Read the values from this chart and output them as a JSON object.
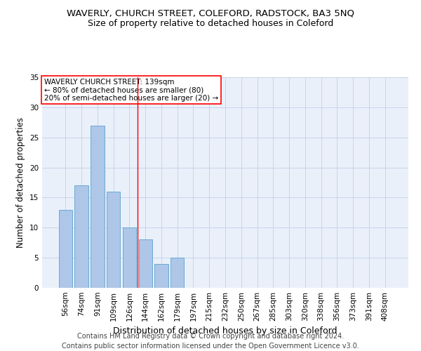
{
  "title": "WAVERLY, CHURCH STREET, COLEFORD, RADSTOCK, BA3 5NQ",
  "subtitle": "Size of property relative to detached houses in Coleford",
  "xlabel": "Distribution of detached houses by size in Coleford",
  "ylabel": "Number of detached properties",
  "footer_line1": "Contains HM Land Registry data © Crown copyright and database right 2024.",
  "footer_line2": "Contains public sector information licensed under the Open Government Licence v3.0.",
  "categories": [
    "56sqm",
    "74sqm",
    "91sqm",
    "109sqm",
    "126sqm",
    "144sqm",
    "162sqm",
    "179sqm",
    "197sqm",
    "215sqm",
    "232sqm",
    "250sqm",
    "267sqm",
    "285sqm",
    "303sqm",
    "320sqm",
    "338sqm",
    "356sqm",
    "373sqm",
    "391sqm",
    "408sqm"
  ],
  "values": [
    13,
    17,
    27,
    16,
    10,
    8,
    4,
    5,
    0,
    0,
    0,
    0,
    0,
    0,
    0,
    0,
    0,
    0,
    0,
    0,
    0
  ],
  "bar_color": "#aec6e8",
  "bar_edge_color": "#6aaad4",
  "grid_color": "#c8d4e8",
  "background_color": "#eaf0fa",
  "vline_x": 4.5,
  "vline_color": "red",
  "annotation_text": "WAVERLY CHURCH STREET: 139sqm\n← 80% of detached houses are smaller (80)\n20% of semi-detached houses are larger (20) →",
  "annotation_box_facecolor": "white",
  "annotation_box_edgecolor": "red",
  "ylim": [
    0,
    35
  ],
  "yticks": [
    0,
    5,
    10,
    15,
    20,
    25,
    30,
    35
  ],
  "title_fontsize": 9.5,
  "subtitle_fontsize": 9,
  "xlabel_fontsize": 9,
  "ylabel_fontsize": 8.5,
  "tick_fontsize": 7.5,
  "annot_fontsize": 7.5,
  "footer_fontsize": 7
}
